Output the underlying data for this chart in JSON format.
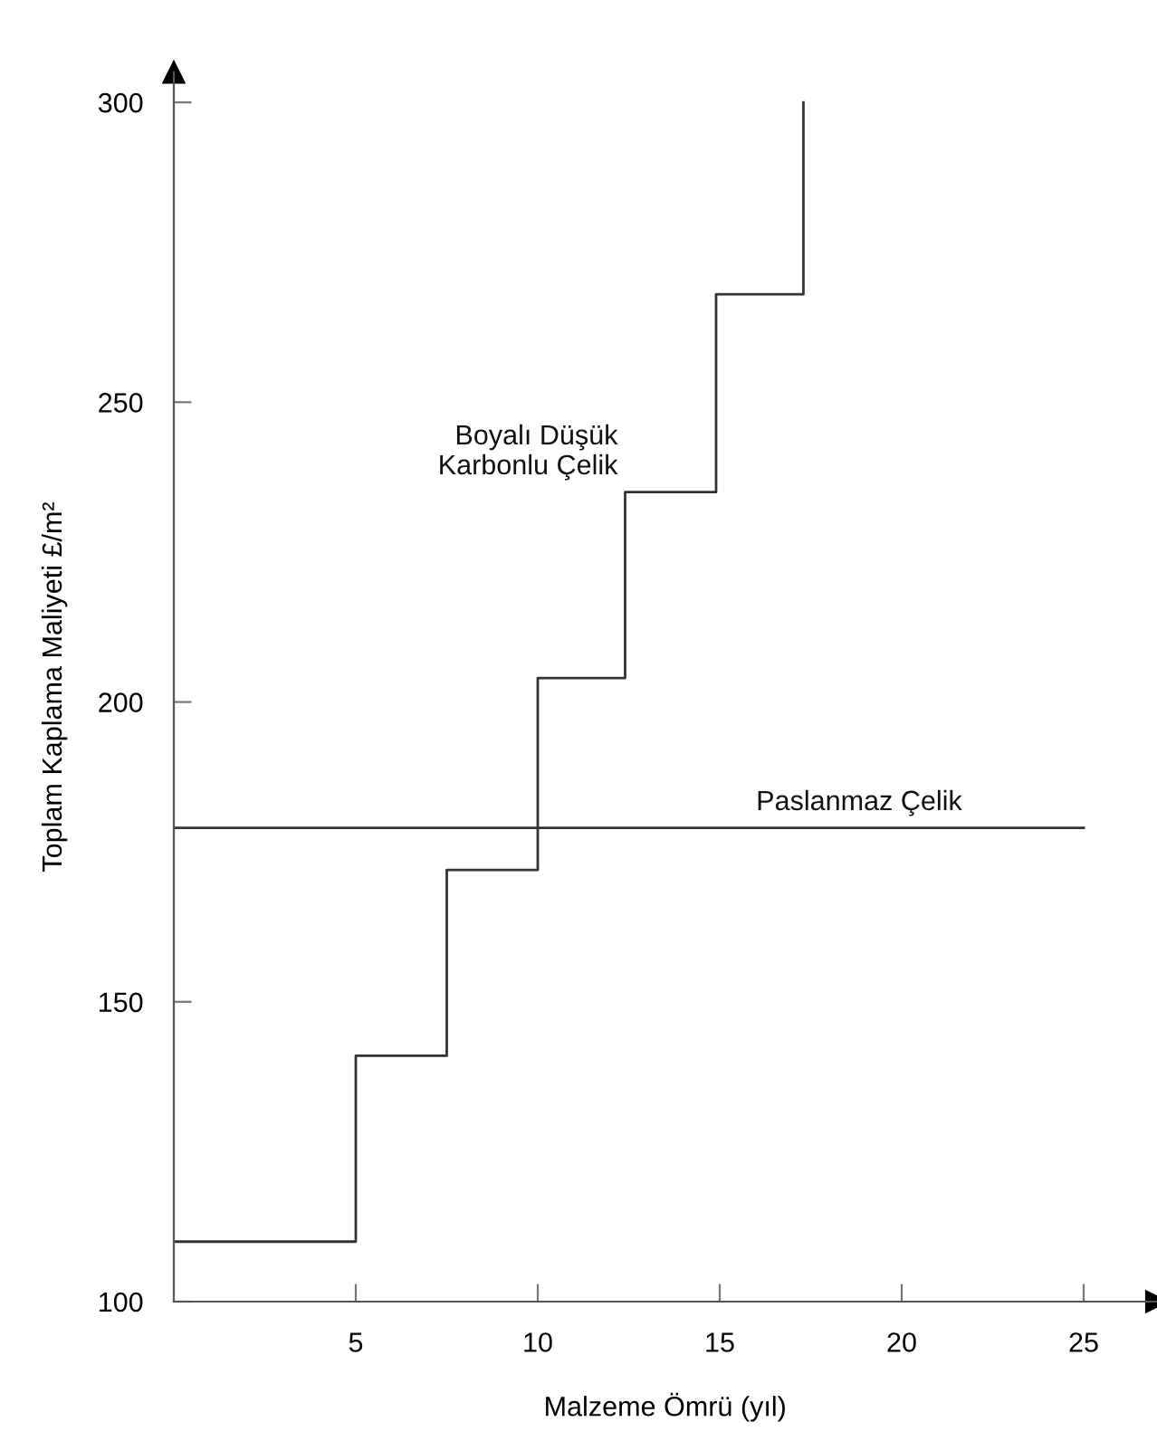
{
  "chart_data": {
    "type": "step",
    "xlabel": "Malzeme Ömrü (yıl)",
    "ylabel": "Toplam Kaplama Maliyeti £/m²",
    "series": [
      {
        "name": "Boyalı Düşük\nKarbonlu Çelik",
        "color": "#333333",
        "x": [
          0,
          5,
          7.5,
          10,
          12.4,
          14.9,
          17.3
        ],
        "values": [
          110,
          141,
          172,
          204,
          235,
          268,
          300
        ]
      },
      {
        "name": "Paslanmaz Çelik",
        "type": "line",
        "color": "#333333",
        "x": [
          0,
          25
        ],
        "values": [
          179,
          179
        ]
      }
    ],
    "xlim": [
      0,
      27
    ],
    "ylim": [
      100,
      305
    ],
    "xticks": [
      5,
      10,
      15,
      20,
      25
    ],
    "yticks": [
      100,
      150,
      200,
      250,
      300
    ],
    "grid": false,
    "legend": false
  }
}
